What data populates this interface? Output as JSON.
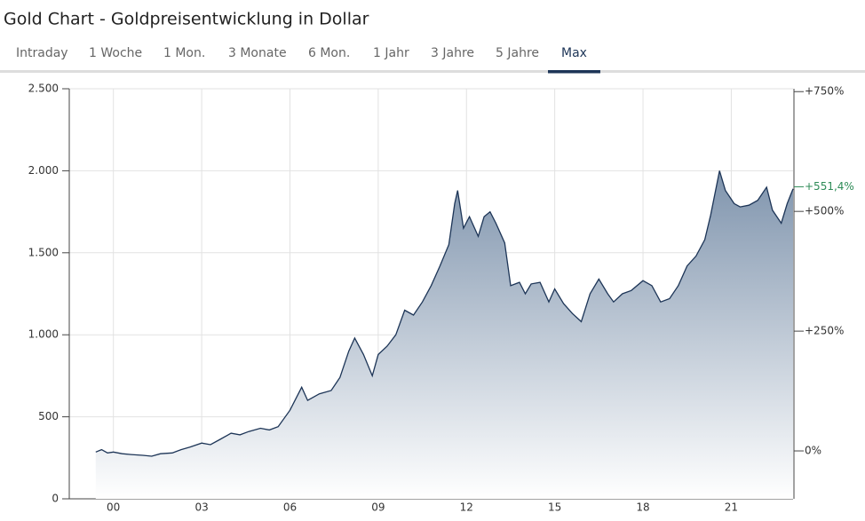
{
  "tabs": [
    "Intraday",
    "1 Woche",
    "1 Mon.",
    "3 Monate",
    "6 Mon.",
    "1 Jahr",
    "3 Jahre",
    "5 Jahre",
    "Max"
  ],
  "active_tab": 8,
  "chart_data": {
    "type": "area",
    "title": "Gold Chart - Goldpreisentwicklung in Dollar",
    "color": "#1d3557",
    "x": [
      -0.6,
      -0.4,
      -0.2,
      0,
      0.3,
      0.6,
      1.0,
      1.3,
      1.6,
      2.0,
      2.3,
      2.6,
      3.0,
      3.3,
      3.6,
      4.0,
      4.3,
      4.6,
      5.0,
      5.3,
      5.6,
      6.0,
      6.4,
      6.6,
      7.0,
      7.4,
      7.7,
      8.0,
      8.2,
      8.5,
      8.8,
      9.0,
      9.3,
      9.6,
      9.9,
      10.2,
      10.5,
      10.8,
      11.1,
      11.4,
      11.6,
      11.7,
      11.9,
      12.1,
      12.4,
      12.6,
      12.8,
      13.0,
      13.3,
      13.5,
      13.8,
      14.0,
      14.2,
      14.5,
      14.8,
      15.0,
      15.3,
      15.6,
      15.9,
      16.2,
      16.5,
      16.8,
      17.0,
      17.3,
      17.6,
      18.0,
      18.3,
      18.6,
      18.9,
      19.2,
      19.5,
      19.8,
      20.1,
      20.3,
      20.6,
      20.8,
      21.1,
      21.3,
      21.6,
      21.9,
      22.2,
      22.4,
      22.7,
      22.9,
      23.1
    ],
    "values": [
      285,
      300,
      280,
      285,
      275,
      270,
      265,
      260,
      275,
      280,
      300,
      315,
      340,
      330,
      360,
      400,
      390,
      410,
      430,
      420,
      440,
      540,
      680,
      600,
      640,
      660,
      740,
      900,
      980,
      880,
      750,
      880,
      930,
      1000,
      1150,
      1120,
      1200,
      1300,
      1420,
      1550,
      1800,
      1880,
      1650,
      1720,
      1600,
      1720,
      1750,
      1680,
      1560,
      1300,
      1320,
      1250,
      1310,
      1320,
      1200,
      1280,
      1190,
      1130,
      1080,
      1250,
      1340,
      1250,
      1200,
      1250,
      1270,
      1330,
      1300,
      1200,
      1220,
      1300,
      1420,
      1480,
      1580,
      1730,
      2000,
      1880,
      1800,
      1780,
      1790,
      1820,
      1900,
      1760,
      1680,
      1800,
      1890
    ],
    "xlim": [
      -1.5,
      23.1
    ],
    "xticks": [
      {
        "value": 0,
        "label": "00"
      },
      {
        "value": 3,
        "label": "03"
      },
      {
        "value": 6,
        "label": "06"
      },
      {
        "value": 9,
        "label": "09"
      },
      12,
      15,
      18,
      21
    ],
    "ylim": [
      0,
      2500
    ],
    "yticks": [
      0,
      500,
      {
        "value": 1000,
        "label": "1.000"
      },
      {
        "value": 1500,
        "label": "1.500"
      },
      {
        "value": 2000,
        "label": "2.000"
      },
      {
        "value": 2500,
        "label": "2.500"
      }
    ],
    "y2lim": [
      -100,
      756
    ],
    "y2ticks": [
      {
        "value": 0,
        "label": "0%"
      },
      {
        "value": 250,
        "label": "+250%"
      },
      {
        "value": 500,
        "label": "+500%"
      },
      {
        "value": 750,
        "label": "+750%"
      }
    ],
    "last_value": {
      "value": 551.4,
      "label": "+551,4%",
      "color": "#2e8b57"
    },
    "grid": true
  }
}
